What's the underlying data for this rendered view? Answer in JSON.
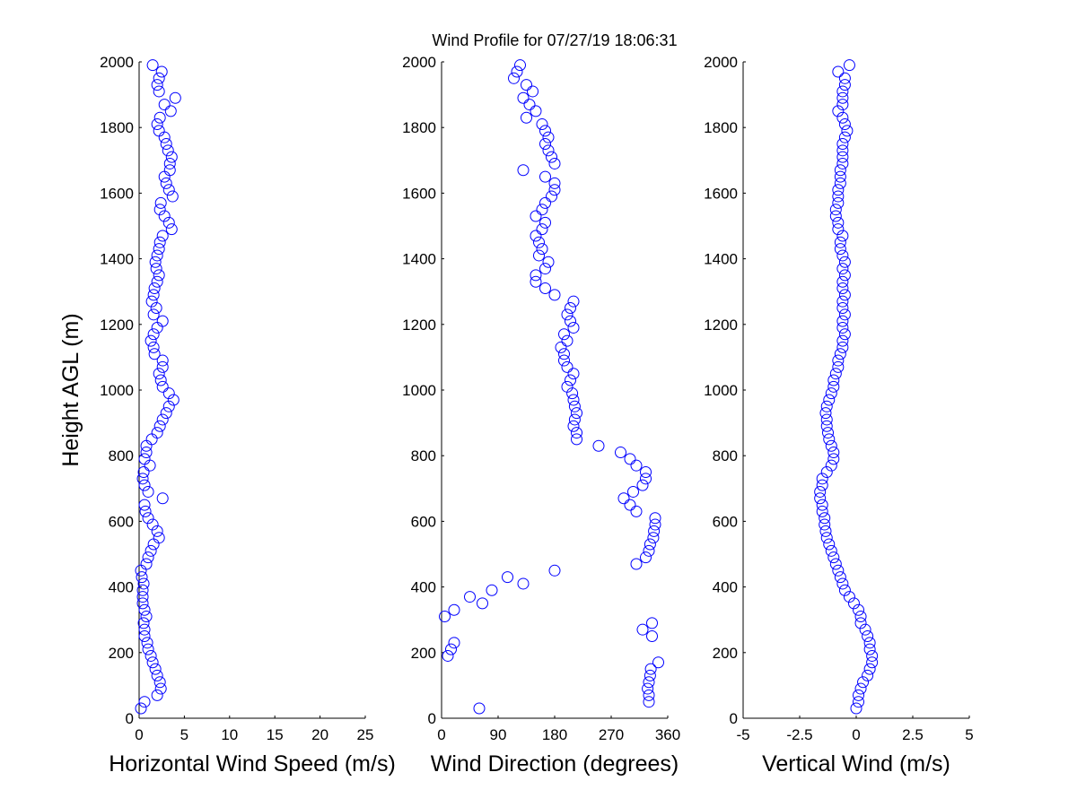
{
  "chart_data": [
    {
      "type": "scatter",
      "xlabel": "Horizontal Wind Speed (m/s)",
      "ylabel": "Height AGL (m)",
      "color": "#0000ff",
      "xlim": [
        0,
        25
      ],
      "xticks": [
        0,
        5,
        10,
        15,
        20,
        25
      ],
      "ylim": [
        0,
        2000
      ],
      "yticks": [
        0,
        200,
        400,
        600,
        800,
        1000,
        1200,
        1400,
        1600,
        1800,
        2000
      ],
      "x": [
        0.2,
        0.6,
        2,
        2.4,
        2.3,
        2,
        1.8,
        1.5,
        1.3,
        1,
        0.9,
        0.6,
        0.6,
        0.5,
        0.8,
        0.6,
        0.4,
        0.4,
        0.4,
        0.5,
        0.3,
        0.2,
        0.8,
        1,
        1.3,
        1.6,
        2.2,
        2.0,
        1.5,
        1.0,
        0.7,
        0.6,
        2.6,
        1.0,
        0.6,
        0.4,
        0.5,
        1.2,
        0.6,
        0.8,
        0.8,
        1.4,
        2.0,
        2.3,
        2.6,
        3.0,
        3.3,
        3.8,
        3.3,
        2.6,
        2.4,
        2.2,
        2.6,
        2.6,
        1.7,
        1.6,
        1.3,
        1.6,
        2,
        2.6,
        1.6,
        1.9,
        1.4,
        1.6,
        1.7,
        2,
        2.2,
        1.9,
        1.8,
        2.0,
        2.2,
        2.3,
        2.6,
        3.6,
        3.3,
        2.8,
        2.3,
        2.4,
        3.7,
        3.3,
        3.0,
        2.8,
        3.4,
        3.4,
        3.6,
        3.2,
        3.0,
        2.8,
        2.2,
        2.0,
        2.3,
        3.5,
        2.8,
        4.0,
        2.2,
        2.0,
        2.2,
        2.5,
        1.5
      ],
      "values": [
        30,
        50,
        70,
        90,
        110,
        130,
        150,
        170,
        190,
        210,
        230,
        250,
        270,
        290,
        310,
        330,
        350,
        370,
        390,
        410,
        430,
        450,
        470,
        490,
        510,
        530,
        550,
        570,
        590,
        610,
        630,
        650,
        670,
        690,
        710,
        730,
        750,
        770,
        790,
        810,
        830,
        850,
        870,
        890,
        910,
        930,
        950,
        970,
        990,
        1010,
        1030,
        1050,
        1070,
        1090,
        1110,
        1130,
        1150,
        1170,
        1190,
        1210,
        1230,
        1250,
        1270,
        1290,
        1310,
        1330,
        1350,
        1370,
        1390,
        1410,
        1430,
        1450,
        1470,
        1490,
        1510,
        1530,
        1550,
        1570,
        1590,
        1610,
        1630,
        1650,
        1670,
        1690,
        1710,
        1730,
        1750,
        1770,
        1790,
        1810,
        1830,
        1850,
        1870,
        1890,
        1910,
        1930,
        1950,
        1970,
        1990
      ]
    },
    {
      "type": "scatter",
      "title": "Wind Profile for  07/27/19 18:06:31",
      "xlabel": "Wind Direction (degrees)",
      "color": "#0000ff",
      "xlim": [
        0,
        360
      ],
      "xticks": [
        0,
        90,
        180,
        270,
        360
      ],
      "ylim": [
        0,
        2000
      ],
      "yticks": [
        0,
        200,
        400,
        600,
        800,
        1000,
        1200,
        1400,
        1600,
        1800,
        2000
      ],
      "x": [
        60,
        330,
        330,
        328,
        330,
        332,
        333,
        345,
        10,
        15,
        20,
        335,
        320,
        335,
        5,
        20,
        65,
        45,
        80,
        130,
        105,
        180,
        310,
        325,
        330,
        332,
        337,
        338,
        340,
        340,
        310,
        300,
        290,
        305,
        320,
        325,
        325,
        310,
        300,
        285,
        250,
        215,
        215,
        210,
        212,
        215,
        212,
        210,
        208,
        200,
        205,
        210,
        200,
        195,
        195,
        190,
        200,
        195,
        210,
        205,
        200,
        205,
        210,
        180,
        165,
        150,
        150,
        165,
        170,
        155,
        160,
        155,
        150,
        160,
        165,
        150,
        160,
        165,
        175,
        180,
        180,
        165,
        130,
        180,
        175,
        170,
        165,
        170,
        165,
        160,
        135,
        150,
        140,
        130,
        145,
        135,
        115,
        120,
        125
      ],
      "values": [
        30,
        50,
        70,
        90,
        110,
        130,
        150,
        170,
        190,
        210,
        230,
        250,
        270,
        290,
        310,
        330,
        350,
        370,
        390,
        410,
        430,
        450,
        470,
        490,
        510,
        530,
        550,
        570,
        590,
        610,
        630,
        650,
        670,
        690,
        710,
        730,
        750,
        770,
        790,
        810,
        830,
        850,
        870,
        890,
        910,
        930,
        950,
        970,
        990,
        1010,
        1030,
        1050,
        1070,
        1090,
        1110,
        1130,
        1150,
        1170,
        1190,
        1210,
        1230,
        1250,
        1270,
        1290,
        1310,
        1330,
        1350,
        1370,
        1390,
        1410,
        1430,
        1450,
        1470,
        1490,
        1510,
        1530,
        1550,
        1570,
        1590,
        1610,
        1630,
        1650,
        1670,
        1690,
        1710,
        1730,
        1750,
        1770,
        1790,
        1810,
        1830,
        1850,
        1870,
        1890,
        1910,
        1930,
        1950,
        1970,
        1990
      ]
    },
    {
      "type": "scatter",
      "xlabel": "Vertical Wind (m/s)",
      "color": "#0000ff",
      "xlim": [
        -5,
        5
      ],
      "xticks": [
        -5,
        -2.5,
        0,
        2.5,
        5
      ],
      "ylim": [
        0,
        2000
      ],
      "yticks": [
        0,
        200,
        400,
        600,
        800,
        1000,
        1200,
        1400,
        1600,
        1800,
        2000
      ],
      "x": [
        0,
        0.1,
        0.1,
        0.2,
        0.3,
        0.5,
        0.6,
        0.7,
        0.7,
        0.6,
        0.6,
        0.5,
        0.4,
        0.2,
        0.2,
        0.1,
        -0.1,
        -0.3,
        -0.5,
        -0.6,
        -0.7,
        -0.8,
        -0.9,
        -1.0,
        -1.1,
        -1.2,
        -1.3,
        -1.35,
        -1.4,
        -1.4,
        -1.5,
        -1.5,
        -1.6,
        -1.6,
        -1.5,
        -1.5,
        -1.3,
        -1.1,
        -1.0,
        -1.0,
        -1.1,
        -1.2,
        -1.25,
        -1.3,
        -1.3,
        -1.35,
        -1.3,
        -1.2,
        -1.1,
        -1.0,
        -1.0,
        -0.9,
        -0.8,
        -0.8,
        -0.7,
        -0.6,
        -0.6,
        -0.5,
        -0.6,
        -0.6,
        -0.5,
        -0.6,
        -0.6,
        -0.5,
        -0.6,
        -0.6,
        -0.5,
        -0.6,
        -0.5,
        -0.6,
        -0.7,
        -0.7,
        -0.6,
        -0.8,
        -0.8,
        -0.9,
        -0.9,
        -0.8,
        -0.8,
        -0.8,
        -0.7,
        -0.7,
        -0.7,
        -0.6,
        -0.6,
        -0.6,
        -0.6,
        -0.5,
        -0.4,
        -0.5,
        -0.6,
        -0.8,
        -0.6,
        -0.6,
        -0.6,
        -0.5,
        -0.5,
        -0.8,
        -0.3
      ],
      "values": [
        30,
        50,
        70,
        90,
        110,
        130,
        150,
        170,
        190,
        210,
        230,
        250,
        270,
        290,
        310,
        330,
        350,
        370,
        390,
        410,
        430,
        450,
        470,
        490,
        510,
        530,
        550,
        570,
        590,
        610,
        630,
        650,
        670,
        690,
        710,
        730,
        750,
        770,
        790,
        810,
        830,
        850,
        870,
        890,
        910,
        930,
        950,
        970,
        990,
        1010,
        1030,
        1050,
        1070,
        1090,
        1110,
        1130,
        1150,
        1170,
        1190,
        1210,
        1230,
        1250,
        1270,
        1290,
        1310,
        1330,
        1350,
        1370,
        1390,
        1410,
        1430,
        1450,
        1470,
        1490,
        1510,
        1530,
        1550,
        1570,
        1590,
        1610,
        1630,
        1650,
        1670,
        1690,
        1710,
        1730,
        1750,
        1770,
        1790,
        1810,
        1830,
        1850,
        1870,
        1890,
        1910,
        1930,
        1950,
        1970,
        1990
      ]
    }
  ]
}
